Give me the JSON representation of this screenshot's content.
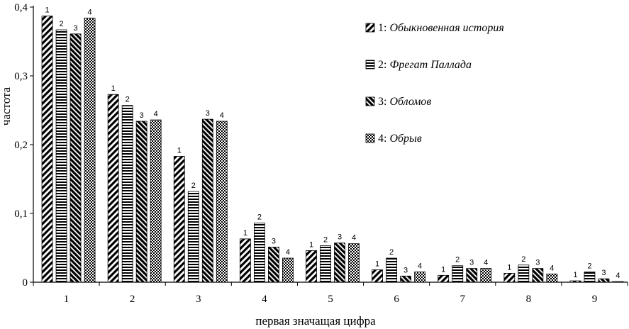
{
  "chart_data": {
    "type": "bar",
    "xlabel": "первая значащая цифра",
    "ylabel": "частота",
    "ylim": [
      0,
      0.4
    ],
    "yticks": [
      "0",
      "0,1",
      "0,2",
      "0,3",
      "0,4"
    ],
    "categories": [
      "1",
      "2",
      "3",
      "4",
      "5",
      "6",
      "7",
      "8",
      "9"
    ],
    "legend_position": "top-right",
    "series": [
      {
        "name": "Обыкновенная история",
        "number": "1",
        "label": "1",
        "sep": ": ",
        "pattern": "diagonal",
        "values": [
          0.387,
          0.273,
          0.183,
          0.063,
          0.046,
          0.018,
          0.01,
          0.013,
          0.002
        ]
      },
      {
        "name": "Фрегат Паллада",
        "number": "2",
        "label": "2",
        "sep": ": ",
        "pattern": "horizontal",
        "values": [
          0.367,
          0.257,
          0.132,
          0.086,
          0.053,
          0.035,
          0.024,
          0.025,
          0.015
        ]
      },
      {
        "name": "Обломов",
        "number": "3",
        "label": "3",
        "sep": ": ",
        "pattern": "diagonal-dense",
        "values": [
          0.361,
          0.234,
          0.237,
          0.051,
          0.057,
          0.009,
          0.02,
          0.02,
          0.005
        ]
      },
      {
        "name": "Обрыв",
        "number": "4",
        "label": "4",
        "sep": ": ",
        "pattern": "checker",
        "values": [
          0.384,
          0.236,
          0.234,
          0.035,
          0.056,
          0.015,
          0.02,
          0.012,
          0.001
        ]
      }
    ]
  }
}
